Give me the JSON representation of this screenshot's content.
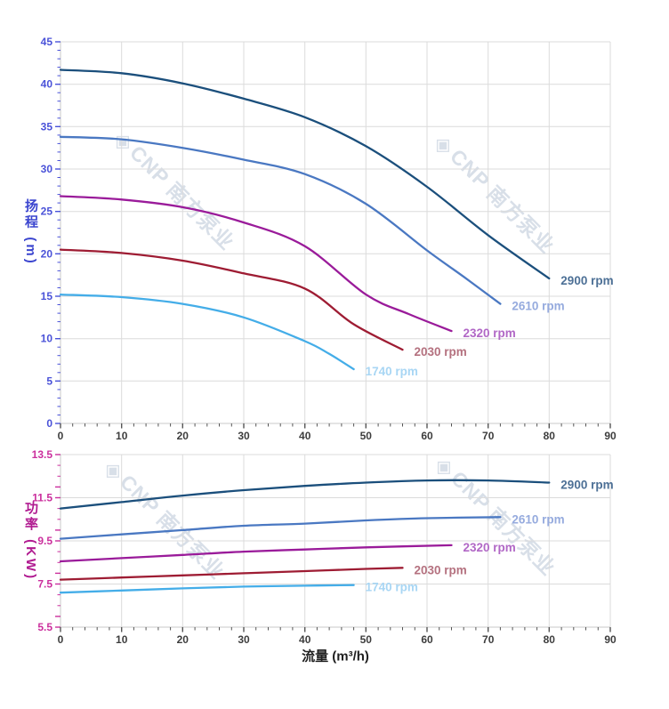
{
  "watermark": {
    "logo_glyph": "◈",
    "text": "CNP 南方泵业"
  },
  "chart_data": [
    {
      "type": "line",
      "id": "head-vs-flow",
      "title": "",
      "ylabel": "扬程 (m)",
      "xlabel": "",
      "x_axis": {
        "min": 0,
        "max": 90,
        "major": 10,
        "minor": 2,
        "tick_labels": [
          "0",
          "10",
          "20",
          "30",
          "40",
          "50",
          "60",
          "70",
          "80",
          "90"
        ],
        "label_color": "#3d3d3d",
        "tick_color": "#555555"
      },
      "y_axis": {
        "min": 0,
        "max": 45,
        "major": 5,
        "minor": 1,
        "tick_labels": [
          "0",
          "5",
          "10",
          "15",
          "20",
          "25",
          "30",
          "35",
          "40",
          "45"
        ],
        "label_color": "#4a52d8",
        "tick_color": "#4a52d8"
      },
      "grid": true,
      "legend_position": "end-of-curve",
      "series": [
        {
          "name": "2900 rpm",
          "color": "#1b4f7c",
          "label_color": "#4d7096",
          "points": [
            [
              0,
              41.7
            ],
            [
              10,
              41.3
            ],
            [
              20,
              40.1
            ],
            [
              30,
              38.3
            ],
            [
              40,
              36.1
            ],
            [
              50,
              32.7
            ],
            [
              60,
              27.9
            ],
            [
              70,
              22.2
            ],
            [
              80,
              17.1
            ]
          ]
        },
        {
          "name": "2610 rpm",
          "color": "#4a78c2",
          "label_color": "#96abde",
          "points": [
            [
              0,
              33.8
            ],
            [
              10,
              33.5
            ],
            [
              20,
              32.5
            ],
            [
              30,
              31.1
            ],
            [
              40,
              29.4
            ],
            [
              50,
              25.9
            ],
            [
              60,
              20.4
            ],
            [
              66,
              17.3
            ],
            [
              72,
              14.1
            ]
          ]
        },
        {
          "name": "2320 rpm",
          "color": "#9a1b9a",
          "label_color": "#b168c6",
          "points": [
            [
              0,
              26.8
            ],
            [
              10,
              26.4
            ],
            [
              20,
              25.5
            ],
            [
              30,
              23.7
            ],
            [
              40,
              20.9
            ],
            [
              50,
              15.2
            ],
            [
              57,
              12.9
            ],
            [
              64,
              10.9
            ]
          ]
        },
        {
          "name": "2030 rpm",
          "color": "#9e1c33",
          "label_color": "#b4717f",
          "points": [
            [
              0,
              20.5
            ],
            [
              10,
              20.1
            ],
            [
              20,
              19.2
            ],
            [
              30,
              17.7
            ],
            [
              40,
              15.9
            ],
            [
              48,
              11.7
            ],
            [
              56,
              8.7
            ]
          ]
        },
        {
          "name": "1740 rpm",
          "color": "#44ade8",
          "label_color": "#a8d6f4",
          "points": [
            [
              0,
              15.2
            ],
            [
              10,
              14.9
            ],
            [
              20,
              14.1
            ],
            [
              30,
              12.5
            ],
            [
              40,
              9.7
            ],
            [
              44,
              8.2
            ],
            [
              48,
              6.4
            ]
          ]
        }
      ]
    },
    {
      "type": "line",
      "id": "power-vs-flow",
      "title": "",
      "ylabel": "功率 (KW)",
      "xlabel": "流量 (m³/h)",
      "x_axis": {
        "min": 0,
        "max": 90,
        "major": 10,
        "minor": 2,
        "tick_labels": [
          "0",
          "10",
          "20",
          "30",
          "40",
          "50",
          "60",
          "70",
          "80",
          "90"
        ],
        "label_color": "#3d3d3d",
        "tick_color": "#555555"
      },
      "y_axis": {
        "min": 5.5,
        "max": 13.5,
        "major": 2,
        "minor": 0.5,
        "tick_labels": [
          "5.5",
          "7.5",
          "9.5",
          "11.5",
          "13.5"
        ],
        "label_color": "#cb2f9d",
        "tick_color": "#cb2f9d"
      },
      "grid": true,
      "legend_position": "end-of-curve",
      "series": [
        {
          "name": "2900 rpm",
          "color": "#1b4f7c",
          "label_color": "#4d7096",
          "points": [
            [
              0,
              11.0
            ],
            [
              10,
              11.3
            ],
            [
              20,
              11.6
            ],
            [
              30,
              11.85
            ],
            [
              40,
              12.05
            ],
            [
              50,
              12.2
            ],
            [
              60,
              12.3
            ],
            [
              70,
              12.3
            ],
            [
              80,
              12.2
            ]
          ]
        },
        {
          "name": "2610 rpm",
          "color": "#4a78c2",
          "label_color": "#96abde",
          "points": [
            [
              0,
              9.6
            ],
            [
              10,
              9.8
            ],
            [
              20,
              10.0
            ],
            [
              30,
              10.2
            ],
            [
              40,
              10.3
            ],
            [
              50,
              10.45
            ],
            [
              60,
              10.55
            ],
            [
              72,
              10.6
            ]
          ]
        },
        {
          "name": "2320 rpm",
          "color": "#9a1b9a",
          "label_color": "#b168c6",
          "points": [
            [
              0,
              8.55
            ],
            [
              10,
              8.7
            ],
            [
              20,
              8.85
            ],
            [
              30,
              9.0
            ],
            [
              40,
              9.1
            ],
            [
              50,
              9.2
            ],
            [
              64,
              9.3
            ]
          ]
        },
        {
          "name": "2030 rpm",
          "color": "#9e1c33",
          "label_color": "#b4717f",
          "points": [
            [
              0,
              7.7
            ],
            [
              10,
              7.8
            ],
            [
              20,
              7.9
            ],
            [
              30,
              8.0
            ],
            [
              40,
              8.1
            ],
            [
              50,
              8.2
            ],
            [
              56,
              8.25
            ]
          ]
        },
        {
          "name": "1740 rpm",
          "color": "#44ade8",
          "label_color": "#a8d6f4",
          "points": [
            [
              0,
              7.1
            ],
            [
              10,
              7.2
            ],
            [
              20,
              7.3
            ],
            [
              30,
              7.38
            ],
            [
              40,
              7.42
            ],
            [
              48,
              7.45
            ]
          ]
        }
      ]
    }
  ],
  "style": {
    "grid_color": "#dbdbdb",
    "axis_line_color": "#c9c9c9"
  }
}
